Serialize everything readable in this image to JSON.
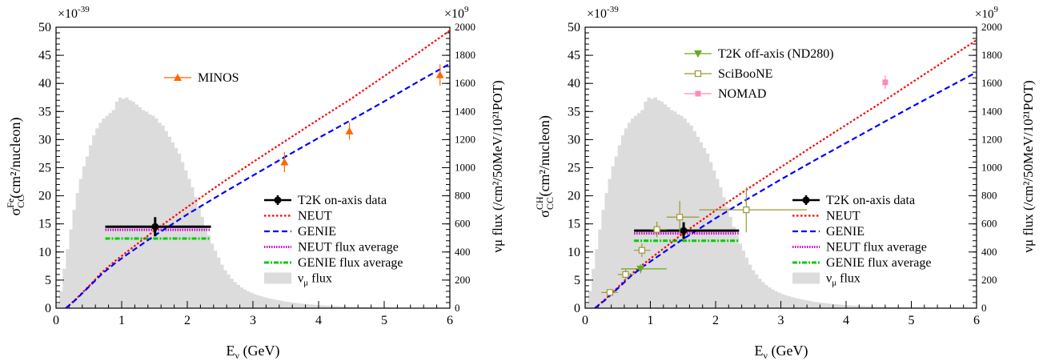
{
  "figure": {
    "panels": [
      {
        "id": "fe",
        "y_multiplier": "×10",
        "y_multiplier_exp": "-39",
        "y2_multiplier": "×10",
        "y2_multiplier_exp": "9",
        "ylabel_sigma": "σ",
        "ylabel_sub": "CC",
        "ylabel_sup": "Fe",
        "ylabel_rest": "(cm²/nucleon)",
        "xlabel_main": "E",
        "xlabel_sub": "ν",
        "xlabel_rest": " (GeV)",
        "y2label": "νμ flux (/cm²/50MeV/10²¹POT)"
      },
      {
        "id": "ch",
        "y_multiplier": "×10",
        "y_multiplier_exp": "-39",
        "y2_multiplier": "×10",
        "y2_multiplier_exp": "9",
        "ylabel_sigma": "σ",
        "ylabel_sub": "CC",
        "ylabel_sup": "CH",
        "ylabel_rest": "(cm²/nucleon)",
        "xlabel_main": "E",
        "xlabel_sub": "ν",
        "xlabel_rest": " (GeV)",
        "y2label": "νμ flux (/cm²/50MeV/10²¹POT)"
      }
    ]
  },
  "chart_data": [
    {
      "type": "line",
      "xlim": [
        0,
        6
      ],
      "ylim": [
        0,
        50
      ],
      "y2lim": [
        0,
        2000
      ],
      "xticks": [
        0,
        1,
        2,
        3,
        4,
        5,
        6
      ],
      "yticks": [
        0,
        5,
        10,
        15,
        20,
        25,
        30,
        35,
        40,
        45,
        50
      ],
      "y2ticks": [
        0,
        200,
        400,
        600,
        800,
        1000,
        1200,
        1400,
        1600,
        1800,
        2000
      ],
      "xlabel": "Eν (GeV)",
      "ylabel": "σ CC Fe (cm²/nucleon)",
      "y2label": "νμ flux (/cm²/50MeV/10²¹POT)",
      "series": [
        {
          "name": "NEUT",
          "style": "dotted",
          "color": "#ff0000",
          "x": [
            0.15,
            0.3,
            0.5,
            0.7,
            0.9,
            1.1,
            1.3,
            1.5,
            2.0,
            2.5,
            3.0,
            3.5,
            4.0,
            4.5,
            5.0,
            5.5,
            6.0
          ],
          "y": [
            0,
            1.6,
            3.9,
            6.4,
            8.4,
            10.2,
            12.0,
            13.8,
            18.0,
            22.1,
            26.0,
            29.8,
            33.6,
            37.3,
            41.3,
            45.3,
            49.4
          ]
        },
        {
          "name": "GENIE",
          "style": "dashed",
          "color": "#0000ff",
          "x": [
            0.15,
            0.3,
            0.5,
            0.7,
            0.9,
            1.1,
            1.3,
            1.5,
            2.0,
            2.5,
            3.0,
            3.5,
            4.0,
            4.5,
            5.0,
            5.5,
            6.0
          ],
          "y": [
            0,
            1.5,
            3.8,
            6.1,
            8.0,
            9.7,
            11.3,
            12.9,
            16.7,
            20.2,
            23.6,
            27.0,
            30.3,
            33.5,
            36.8,
            40.2,
            43.5
          ]
        }
      ],
      "flux_histogram": {
        "name": "νμ flux",
        "color": "#dcdcdc",
        "bin_width": 0.05,
        "x_start": 0.0,
        "values": [
          30,
          120,
          280,
          420,
          560,
          700,
          820,
          920,
          1010,
          1080,
          1160,
          1230,
          1280,
          1320,
          1350,
          1370,
          1390,
          1410,
          1470,
          1500,
          1490,
          1500,
          1480,
          1470,
          1450,
          1430,
          1410,
          1400,
          1380,
          1370,
          1350,
          1320,
          1300,
          1260,
          1220,
          1180,
          1140,
          1100,
          1040,
          980,
          920,
          860,
          790,
          720,
          650,
          580,
          520,
          460,
          410,
          360,
          310,
          270,
          240,
          210,
          185,
          165,
          148,
          133,
          120,
          110,
          100,
          92,
          85,
          78,
          72,
          67,
          62,
          57,
          53,
          49,
          45,
          42,
          39,
          36,
          33,
          31,
          29,
          27,
          25,
          23,
          21,
          20,
          18,
          17,
          16,
          15,
          14,
          13,
          12,
          11,
          10,
          9,
          9,
          8,
          8,
          7,
          7,
          6,
          6,
          5,
          5,
          5,
          4,
          4,
          4,
          4,
          3,
          3,
          3,
          3,
          3,
          3,
          2,
          2,
          2,
          2,
          2,
          2,
          2,
          2
        ]
      },
      "measurements": [
        {
          "name": "T2K on-axis data",
          "x": 1.51,
          "y": 14.5,
          "xerr": [
            0.75,
            2.36
          ],
          "yerr": 1.7,
          "marker": "circle",
          "color": "#000000"
        },
        {
          "name": "NEUT flux average",
          "x_range": [
            0.75,
            2.36
          ],
          "y": 13.95,
          "color": "#cc00cc"
        },
        {
          "name": "GENIE flux average",
          "x_range": [
            0.75,
            2.36
          ],
          "y": 12.4,
          "color": "#00cc00"
        }
      ],
      "external": [
        {
          "name": "MINOS",
          "color": "#ff6600",
          "marker": "triangle",
          "x": [
            3.48,
            4.47,
            5.85
          ],
          "y": [
            26.0,
            31.5,
            41.5
          ],
          "yerr": [
            1.8,
            1.5,
            1.9
          ]
        }
      ],
      "legends": {
        "top": [
          "MINOS"
        ],
        "bottom": [
          "T2K on-axis data",
          "NEUT",
          "GENIE",
          "NEUT flux average",
          "GENIE flux average",
          "νμ flux"
        ]
      }
    },
    {
      "type": "line",
      "xlim": [
        0,
        6
      ],
      "ylim": [
        0,
        50
      ],
      "y2lim": [
        0,
        2000
      ],
      "xticks": [
        0,
        1,
        2,
        3,
        4,
        5,
        6
      ],
      "yticks": [
        0,
        5,
        10,
        15,
        20,
        25,
        30,
        35,
        40,
        45,
        50
      ],
      "y2ticks": [
        0,
        200,
        400,
        600,
        800,
        1000,
        1200,
        1400,
        1600,
        1800,
        2000
      ],
      "xlabel": "Eν (GeV)",
      "ylabel": "σ CC CH (cm²/nucleon)",
      "y2label": "νμ flux (/cm²/50MeV/10²¹POT)",
      "series": [
        {
          "name": "NEUT",
          "style": "dotted",
          "color": "#ff0000",
          "x": [
            0.15,
            0.3,
            0.5,
            0.7,
            0.9,
            1.1,
            1.3,
            1.5,
            2.0,
            2.5,
            3.0,
            3.5,
            4.0,
            4.5,
            5.0,
            5.5,
            6.0
          ],
          "y": [
            0,
            1.5,
            3.7,
            6.0,
            7.9,
            9.7,
            11.5,
            13.3,
            17.4,
            21.3,
            25.1,
            28.9,
            32.6,
            36.3,
            40.1,
            43.9,
            47.7
          ]
        },
        {
          "name": "GENIE",
          "style": "dashed",
          "color": "#0000ff",
          "x": [
            0.15,
            0.3,
            0.5,
            0.7,
            0.9,
            1.1,
            1.3,
            1.5,
            2.0,
            2.5,
            3.0,
            3.5,
            4.0,
            4.5,
            5.0,
            5.5,
            6.0
          ],
          "y": [
            0,
            1.4,
            3.5,
            5.7,
            7.5,
            9.1,
            10.7,
            12.3,
            16.0,
            19.5,
            22.9,
            26.2,
            29.4,
            32.6,
            35.8,
            38.9,
            42.0
          ]
        }
      ],
      "flux_histogram": {
        "name": "νμ flux",
        "color": "#dcdcdc",
        "bin_width": 0.05,
        "x_start": 0.0,
        "values": [
          30,
          120,
          280,
          420,
          560,
          700,
          820,
          920,
          1010,
          1080,
          1160,
          1230,
          1280,
          1320,
          1350,
          1370,
          1390,
          1410,
          1470,
          1500,
          1490,
          1500,
          1480,
          1470,
          1450,
          1430,
          1410,
          1400,
          1380,
          1370,
          1350,
          1320,
          1300,
          1260,
          1220,
          1180,
          1140,
          1100,
          1040,
          980,
          920,
          860,
          790,
          720,
          650,
          580,
          520,
          460,
          410,
          360,
          310,
          270,
          240,
          210,
          185,
          165,
          148,
          133,
          120,
          110,
          100,
          92,
          85,
          78,
          72,
          67,
          62,
          57,
          53,
          49,
          45,
          42,
          39,
          36,
          33,
          31,
          29,
          27,
          25,
          23,
          21,
          20,
          18,
          17,
          16,
          15,
          14,
          13,
          12,
          11,
          10,
          9,
          9,
          8,
          8,
          7,
          7,
          6,
          6,
          5,
          5,
          5,
          4,
          4,
          4,
          4,
          3,
          3,
          3,
          3,
          3,
          3,
          2,
          2,
          2,
          2,
          2,
          2,
          2,
          2
        ]
      },
      "measurements": [
        {
          "name": "T2K on-axis data",
          "x": 1.51,
          "y": 13.8,
          "xerr": [
            0.75,
            2.36
          ],
          "yerr": 1.5,
          "marker": "circle",
          "color": "#000000"
        },
        {
          "name": "NEUT flux average",
          "x_range": [
            0.75,
            2.36
          ],
          "y": 13.3,
          "color": "#cc00cc"
        },
        {
          "name": "GENIE flux average",
          "x_range": [
            0.75,
            2.36
          ],
          "y": 12.0,
          "color": "#00cc00"
        }
      ],
      "external": [
        {
          "name": "T2K off-axis (ND280)",
          "color": "#66aa22",
          "marker": "triangle-down",
          "x": [
            0.85
          ],
          "y": [
            7.0
          ],
          "xerr": [
            [
              0.55,
              1.25
            ]
          ],
          "yerr": [
            0.8
          ]
        },
        {
          "name": "SciBooNE",
          "color": "#999933",
          "marker": "open-square",
          "x": [
            0.38,
            0.62,
            0.87,
            1.1,
            1.45,
            2.47
          ],
          "y": [
            2.8,
            6.0,
            10.3,
            14.0,
            16.2,
            17.5
          ],
          "xerr": [
            [
              0.25,
              0.5
            ],
            [
              0.5,
              0.75
            ],
            [
              0.75,
              1.0
            ],
            [
              1.0,
              1.25
            ],
            [
              1.25,
              1.75
            ],
            [
              1.75,
              3.4
            ]
          ],
          "yerr": [
            0.4,
            0.9,
            1.2,
            1.4,
            2.9,
            4.0
          ]
        },
        {
          "name": "NOMAD",
          "color": "#ff88bb",
          "marker": "filled-square",
          "x": [
            4.6
          ],
          "y": [
            40.2
          ],
          "yerr": [
            1.2
          ]
        }
      ],
      "legends": {
        "top": [
          "T2K off-axis (ND280)",
          "SciBooNE",
          "NOMAD"
        ],
        "bottom": [
          "T2K on-axis data",
          "NEUT",
          "GENIE",
          "NEUT flux average",
          "GENIE flux average",
          "νμ flux"
        ]
      }
    }
  ]
}
